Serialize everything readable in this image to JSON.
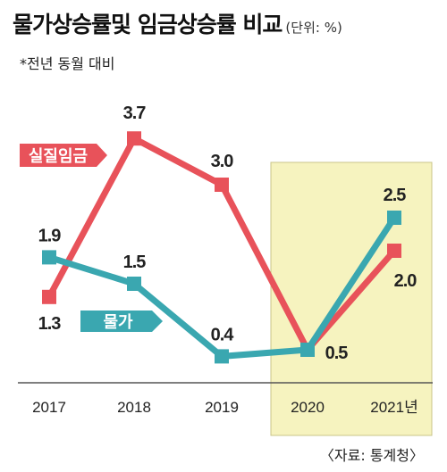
{
  "header": {
    "title": "물가상승률및 임금상승률 비교",
    "unit": "(단위: %)",
    "subtitle": "*전년 동월 대비"
  },
  "source": "〈자료: 통계청〉",
  "colors": {
    "wage": "#e8525a",
    "price": "#3aa7b0",
    "highlight": "#f6f3bf",
    "highlight_border": "#c9c489",
    "axis": "#555555"
  },
  "chart_data": {
    "type": "line",
    "x": [
      "2017",
      "2018",
      "2019",
      "2020",
      "2021년"
    ],
    "ylim": [
      0,
      4
    ],
    "highlight_range": [
      "2020",
      "2021년"
    ],
    "series": [
      {
        "name": "실질임금",
        "values": [
          1.3,
          3.7,
          3.0,
          0.5,
          2.0
        ],
        "labels": [
          "1.3",
          "3.7",
          "3.0",
          "",
          "2.0"
        ],
        "color": "#e8525a"
      },
      {
        "name": "물가",
        "values": [
          1.9,
          1.5,
          0.4,
          0.5,
          2.5
        ],
        "labels": [
          "1.9",
          "1.5",
          "0.4",
          "0.5",
          "2.5"
        ],
        "color": "#3aa7b0"
      }
    ]
  }
}
